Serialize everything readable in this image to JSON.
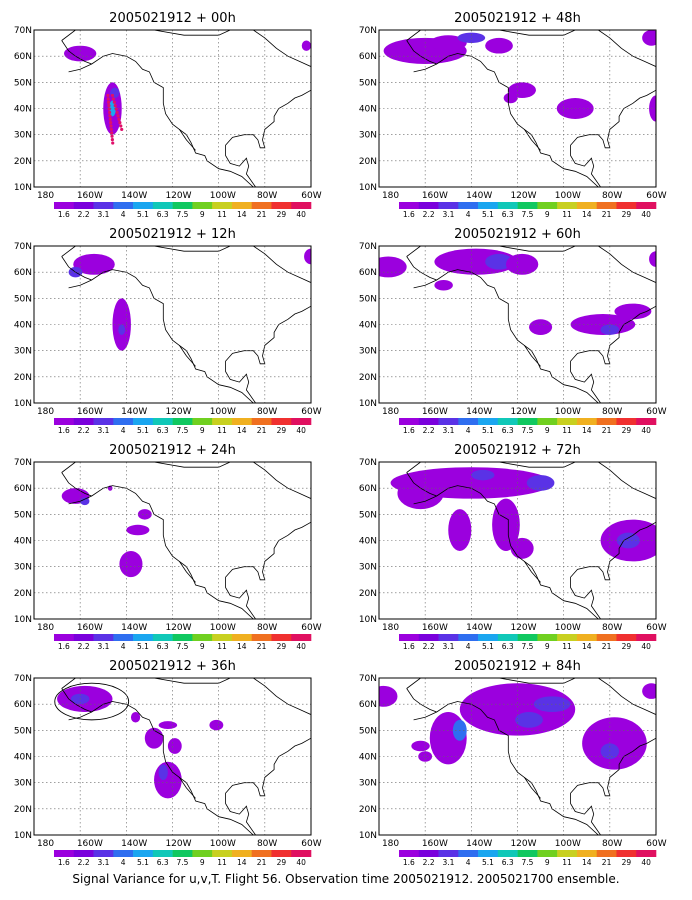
{
  "caption": "Signal Variance for u,v,T. Flight 56. Observation time 2005021912. 2005021700 ensemble.",
  "axes": {
    "x_labels": [
      "180",
      "160W",
      "140W",
      "120W",
      "100W",
      "80W",
      "60W"
    ],
    "y_labels": [
      "10N",
      "20N",
      "30N",
      "40N",
      "50N",
      "60N",
      "70N"
    ],
    "lon_range": [
      -180,
      -60
    ],
    "lat_range": [
      10,
      70
    ]
  },
  "colorbar": {
    "labels": [
      "1.6",
      "2.2",
      "3.1",
      "4",
      "5.1",
      "6.3",
      "7.5",
      "9",
      "11",
      "14",
      "21",
      "29",
      "40"
    ],
    "colors": [
      "#9B00DE",
      "#7A00DC",
      "#5A32E6",
      "#2F6EF0",
      "#1AA6F0",
      "#10C8B8",
      "#10C860",
      "#70D020",
      "#C8D020",
      "#F0B020",
      "#F07020",
      "#F03030",
      "#E01060"
    ]
  },
  "panels": [
    {
      "title": "2005021912 + 00h",
      "blobs": [
        [
          -160,
          61,
          7,
          3,
          0
        ],
        [
          -146,
          40,
          4,
          10,
          0
        ],
        [
          -146,
          40,
          1.5,
          3,
          4
        ],
        [
          -145,
          46,
          2,
          2,
          2
        ],
        [
          -62,
          64,
          2,
          2,
          0
        ]
      ],
      "track": true,
      "ellipse": null
    },
    {
      "title": "2005021912 + 12h",
      "blobs": [
        [
          -154,
          63,
          9,
          4,
          0
        ],
        [
          -142,
          40,
          4,
          10,
          0
        ],
        [
          -142,
          38,
          1.5,
          2,
          2
        ],
        [
          -162,
          60,
          3,
          2,
          2
        ],
        [
          -60,
          66,
          3,
          3,
          0
        ]
      ],
      "track": false,
      "ellipse": null
    },
    {
      "title": "2005021912 + 24h",
      "blobs": [
        [
          -162,
          57,
          6,
          3,
          0
        ],
        [
          -158,
          55,
          2,
          1.5,
          2
        ],
        [
          -132,
          50,
          3,
          2,
          0
        ],
        [
          -135,
          44,
          5,
          2,
          0
        ],
        [
          -138,
          31,
          5,
          5,
          0
        ],
        [
          -147,
          60,
          1,
          1,
          0
        ]
      ],
      "track": false,
      "ellipse": null
    },
    {
      "title": "2005021912 + 36h",
      "blobs": [
        [
          -158,
          62,
          12,
          5,
          0
        ],
        [
          -160,
          62,
          4,
          2,
          2
        ],
        [
          -136,
          55,
          2,
          2,
          0
        ],
        [
          -128,
          47,
          4,
          4,
          0
        ],
        [
          -119,
          44,
          3,
          3,
          0
        ],
        [
          -122,
          52,
          4,
          1.5,
          0
        ],
        [
          -122,
          31,
          6,
          7,
          0
        ],
        [
          -124,
          34,
          2,
          3,
          2
        ],
        [
          -101,
          52,
          3,
          2,
          0
        ]
      ],
      "track": false,
      "ellipse": [
        -155,
        61,
        16,
        7
      ]
    },
    {
      "title": "2005021912 + 48h",
      "blobs": [
        [
          -160,
          62,
          18,
          5,
          0
        ],
        [
          -150,
          65,
          8,
          3,
          0
        ],
        [
          -140,
          67,
          6,
          2,
          2
        ],
        [
          -128,
          64,
          6,
          3,
          0
        ],
        [
          -118,
          47,
          6,
          3,
          0
        ],
        [
          -123,
          44,
          3,
          2,
          0
        ],
        [
          -95,
          40,
          8,
          4,
          0
        ],
        [
          -62,
          67,
          4,
          3,
          0
        ],
        [
          -60,
          40,
          3,
          5,
          0
        ]
      ],
      "track": false,
      "ellipse": null
    },
    {
      "title": "2005021912 + 60h",
      "blobs": [
        [
          -176,
          62,
          8,
          4,
          0
        ],
        [
          -152,
          55,
          4,
          2,
          0
        ],
        [
          -138,
          64,
          18,
          5,
          0
        ],
        [
          -128,
          64,
          6,
          3,
          2
        ],
        [
          -118,
          63,
          7,
          4,
          0
        ],
        [
          -110,
          39,
          5,
          3,
          0
        ],
        [
          -83,
          40,
          14,
          4,
          0
        ],
        [
          -80,
          38,
          4,
          2,
          2
        ],
        [
          -70,
          45,
          8,
          3,
          0
        ],
        [
          -60,
          65,
          3,
          3,
          0
        ]
      ],
      "track": false,
      "ellipse": null
    },
    {
      "title": "2005021912 + 72h",
      "blobs": [
        [
          -140,
          62,
          35,
          6,
          0
        ],
        [
          -162,
          58,
          10,
          6,
          0
        ],
        [
          -145,
          44,
          5,
          8,
          0
        ],
        [
          -125,
          46,
          6,
          10,
          0
        ],
        [
          -118,
          37,
          5,
          4,
          0
        ],
        [
          -110,
          62,
          6,
          3,
          2
        ],
        [
          -135,
          65,
          5,
          2,
          2
        ],
        [
          -70,
          40,
          14,
          8,
          0
        ],
        [
          -72,
          40,
          5,
          3,
          2
        ]
      ],
      "track": false,
      "ellipse": null
    },
    {
      "title": "2005021912 + 84h",
      "blobs": [
        [
          -178,
          63,
          6,
          4,
          0
        ],
        [
          -150,
          47,
          8,
          10,
          0
        ],
        [
          -145,
          50,
          3,
          4,
          3
        ],
        [
          -162,
          44,
          4,
          2,
          0
        ],
        [
          -120,
          58,
          25,
          10,
          0
        ],
        [
          -105,
          60,
          8,
          3,
          2
        ],
        [
          -115,
          54,
          6,
          3,
          2
        ],
        [
          -78,
          45,
          14,
          10,
          0
        ],
        [
          -80,
          42,
          4,
          3,
          2
        ],
        [
          -62,
          65,
          4,
          3,
          0
        ],
        [
          -160,
          40,
          3,
          2,
          0
        ]
      ],
      "track": false,
      "ellipse": null
    }
  ]
}
